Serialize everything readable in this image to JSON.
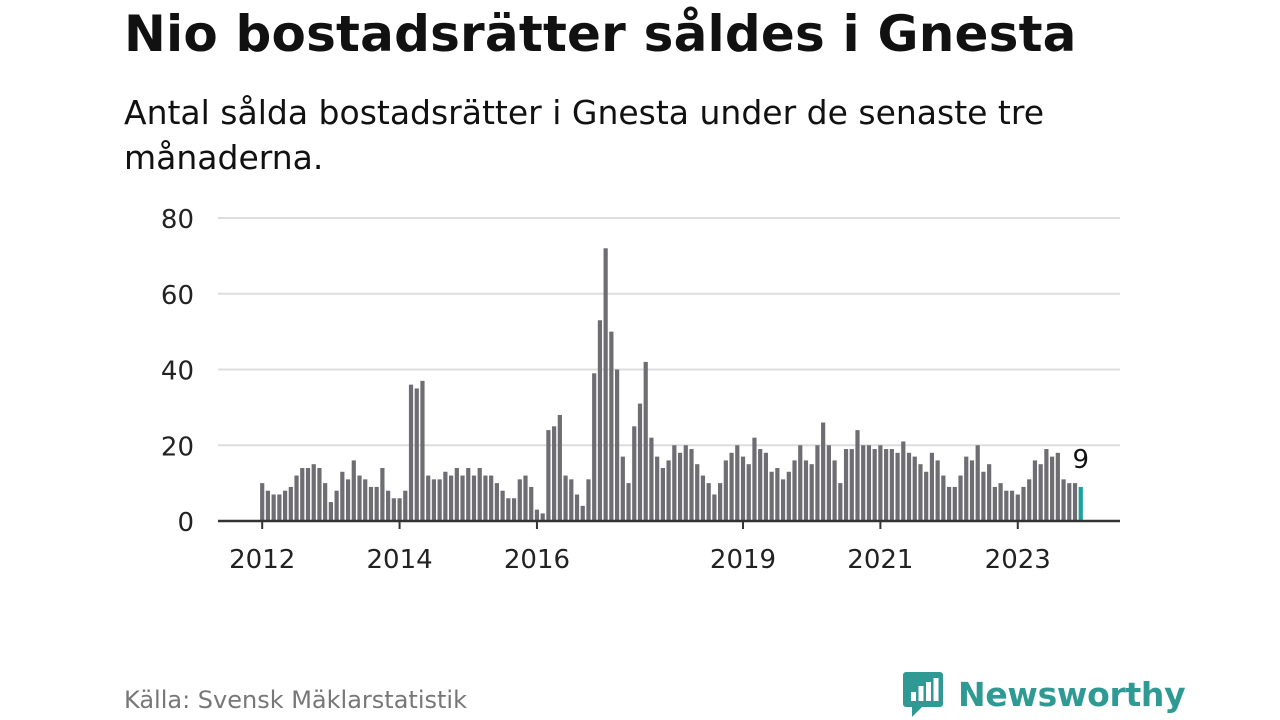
{
  "header": {
    "title": "Nio bostadsrätter såldes i Gnesta",
    "subtitle": "Antal sålda bostadsrätter i Gnesta under de senaste tre månaderna."
  },
  "footer": {
    "source": "Källa: Svensk Mäklarstatistik",
    "brand": "Newsworthy"
  },
  "colors": {
    "bar": "#6e6d72",
    "highlight": "#1aa39a",
    "grid": "#dddddd",
    "axis": "#333333",
    "brand": "#2f9a94"
  },
  "chart_data": {
    "type": "bar",
    "title": "Nio bostadsrätter såldes i Gnesta",
    "xlabel": "",
    "ylabel": "",
    "ylim": [
      0,
      80
    ],
    "yticks": [
      0,
      20,
      40,
      60,
      80
    ],
    "start": "2012-01",
    "xtick_labels": [
      {
        "label": "2012",
        "index": 0
      },
      {
        "label": "2014",
        "index": 24
      },
      {
        "label": "2016",
        "index": 48
      },
      {
        "label": "2019",
        "index": 84
      },
      {
        "label": "2021",
        "index": 108
      },
      {
        "label": "2023",
        "index": 132
      }
    ],
    "values": [
      10,
      8,
      7,
      7,
      8,
      9,
      12,
      14,
      14,
      15,
      14,
      10,
      5,
      8,
      13,
      11,
      16,
      12,
      11,
      9,
      9,
      14,
      8,
      6,
      6,
      8,
      36,
      35,
      37,
      12,
      11,
      11,
      13,
      12,
      14,
      12,
      14,
      12,
      14,
      12,
      12,
      10,
      8,
      6,
      6,
      11,
      12,
      9,
      3,
      2,
      24,
      25,
      28,
      12,
      11,
      7,
      4,
      11,
      39,
      53,
      72,
      50,
      40,
      17,
      10,
      25,
      31,
      42,
      22,
      17,
      14,
      16,
      20,
      18,
      20,
      19,
      15,
      12,
      10,
      7,
      10,
      16,
      18,
      20,
      17,
      15,
      22,
      19,
      18,
      13,
      14,
      11,
      13,
      16,
      20,
      16,
      15,
      20,
      26,
      20,
      16,
      10,
      19,
      19,
      24,
      20,
      20,
      19,
      20,
      19,
      19,
      18,
      21,
      18,
      17,
      15,
      13,
      18,
      16,
      12,
      9,
      9,
      12,
      17,
      16,
      20,
      13,
      15,
      9,
      10,
      8,
      8,
      7,
      9,
      11,
      16,
      15,
      19,
      17,
      18,
      11,
      10,
      10,
      9
    ],
    "highlight_index": 143,
    "highlight_label": "9"
  }
}
